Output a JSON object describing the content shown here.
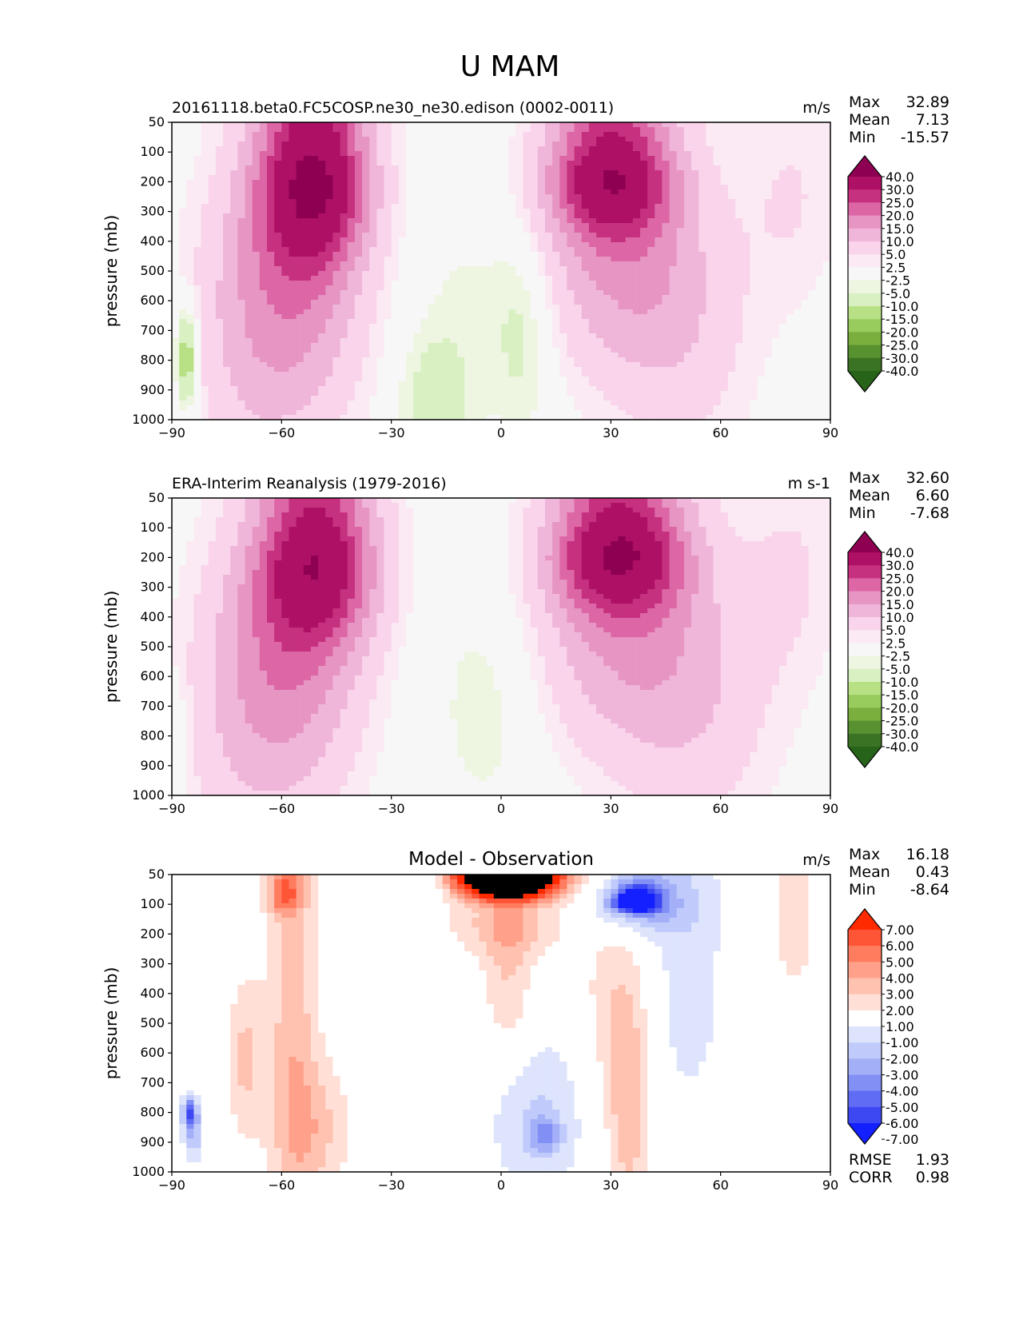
{
  "figure_title": "U MAM",
  "chart_data": [
    {
      "type": "contour",
      "panel": "test",
      "title": "20161118.beta0.FC5COSP.ne30_ne30.edison (0002-0011)",
      "units": "m/s",
      "ylabel": "pressure (mb)",
      "x_ticks": [
        "−90",
        "−60",
        "−30",
        "0",
        "30",
        "60",
        "90"
      ],
      "y_ticks": [
        "50",
        "100",
        "200",
        "300",
        "400",
        "500",
        "600",
        "700",
        "800",
        "900",
        "1000"
      ],
      "xlim": [
        -90,
        90
      ],
      "ylim": [
        1000,
        50
      ],
      "stats": [
        {
          "label": "Max",
          "value": "32.89"
        },
        {
          "label": "Mean",
          "value": "7.13"
        },
        {
          "label": "Min",
          "value": "-15.57"
        }
      ],
      "colorbar_levels": [
        "40.0",
        "30.0",
        "25.0",
        "20.0",
        "15.0",
        "10.0",
        "5.0",
        "2.5",
        "-2.5",
        "-5.0",
        "-10.0",
        "-15.0",
        "-20.0",
        "-25.0",
        "-30.0",
        "-40.0"
      ],
      "colorbar_colors": [
        "#8e0152",
        "#ad1065",
        "#c6317f",
        "#dd67a6",
        "#e795c2",
        "#f0b6da",
        "#f9d4ea",
        "#fbeaf3",
        "#f7f7f7",
        "#eef6e2",
        "#d9f0c3",
        "#b8e186",
        "#98cc5d",
        "#7aaf3d",
        "#589130",
        "#3b7324",
        "#276419"
      ],
      "features": [
        {
          "lat": -52,
          "plev": 230,
          "u": 32
        },
        {
          "lat": 28,
          "plev": 200,
          "u": 29
        },
        {
          "lat": -20,
          "plev": 900,
          "u": -8
        },
        {
          "lat": 5,
          "plev": 700,
          "u": -6
        },
        {
          "lat": -86,
          "plev": 800,
          "u": -15
        }
      ]
    },
    {
      "type": "contour",
      "panel": "reference",
      "title": "ERA-Interim Reanalysis (1979-2016)",
      "units": "m s-1",
      "ylabel": "pressure (mb)",
      "x_ticks": [
        "−90",
        "−60",
        "−30",
        "0",
        "30",
        "60",
        "90"
      ],
      "y_ticks": [
        "50",
        "100",
        "200",
        "300",
        "400",
        "500",
        "600",
        "700",
        "800",
        "900",
        "1000"
      ],
      "xlim": [
        -90,
        90
      ],
      "ylim": [
        1000,
        50
      ],
      "stats": [
        {
          "label": "Max",
          "value": "32.60"
        },
        {
          "label": "Mean",
          "value": "6.60"
        },
        {
          "label": "Min",
          "value": "-7.68"
        }
      ],
      "colorbar_levels": [
        "40.0",
        "30.0",
        "25.0",
        "20.0",
        "15.0",
        "10.0",
        "5.0",
        "2.5",
        "-2.5",
        "-5.0",
        "-10.0",
        "-15.0",
        "-20.0",
        "-25.0",
        "-30.0",
        "-40.0"
      ],
      "colorbar_colors": [
        "#8e0152",
        "#ad1065",
        "#c6317f",
        "#dd67a6",
        "#e795c2",
        "#f0b6da",
        "#f9d4ea",
        "#fbeaf3",
        "#f7f7f7",
        "#eef6e2",
        "#d9f0c3",
        "#b8e186",
        "#98cc5d",
        "#7aaf3d",
        "#589130",
        "#3b7324",
        "#276419"
      ],
      "features": [
        {
          "lat": -50,
          "plev": 230,
          "u": 29
        },
        {
          "lat": 32,
          "plev": 200,
          "u": 32
        },
        {
          "lat": -3,
          "plev": 650,
          "u": -4
        }
      ]
    },
    {
      "type": "contour",
      "panel": "difference",
      "title": "Model - Observation",
      "units": "m/s",
      "ylabel": "pressure (mb)",
      "x_ticks": [
        "−90",
        "−60",
        "−30",
        "0",
        "30",
        "60",
        "90"
      ],
      "y_ticks": [
        "50",
        "100",
        "200",
        "300",
        "400",
        "500",
        "600",
        "700",
        "800",
        "900",
        "1000"
      ],
      "xlim": [
        -90,
        90
      ],
      "ylim": [
        1000,
        50
      ],
      "stats": [
        {
          "label": "Max",
          "value": "16.18"
        },
        {
          "label": "Mean",
          "value": "0.43"
        },
        {
          "label": "Min",
          "value": "-8.64"
        }
      ],
      "metrics": [
        {
          "label": "RMSE",
          "value": "1.93"
        },
        {
          "label": "CORR",
          "value": "0.98"
        }
      ],
      "colorbar_levels": [
        "7.00",
        "6.00",
        "5.00",
        "4.00",
        "3.00",
        "2.00",
        "1.00",
        "-1.00",
        "-2.00",
        "-3.00",
        "-4.00",
        "-5.00",
        "-6.00",
        "-7.00"
      ],
      "colorbar_colors": [
        "#ff2a00",
        "#ff5537",
        "#ff7c5f",
        "#ffa18a",
        "#ffc1b0",
        "#ffdfd6",
        "#ffffff",
        "#dde4fc",
        "#c1cbfb",
        "#a3b0f8",
        "#8290f5",
        "#606cf3",
        "#3d47f2",
        "#1420ff"
      ],
      "features": [
        {
          "lat": 2,
          "plev": 60,
          "u": 12
        },
        {
          "lat": -59,
          "plev": 70,
          "u": 4
        },
        {
          "lat": 37,
          "plev": 100,
          "u": -8
        },
        {
          "lat": 12,
          "plev": 870,
          "u": -2.5
        },
        {
          "lat": 36,
          "plev": 800,
          "u": 3
        }
      ]
    }
  ]
}
